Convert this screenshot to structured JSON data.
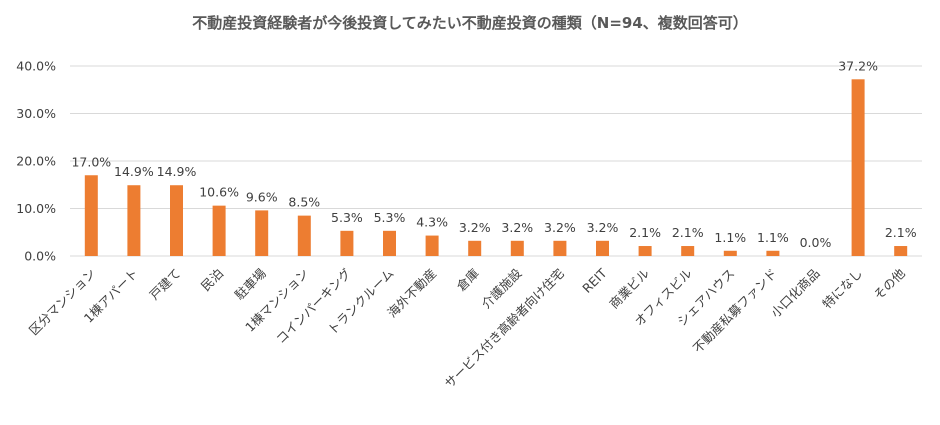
{
  "chart_data": {
    "type": "bar",
    "title": "不動産投資経験者が今後投資してみたい不動産投資の種類（N=94、複数回答可）",
    "categories": [
      "区分マンション",
      "1棟アパート",
      "戸建て",
      "民泊",
      "駐車場",
      "1棟マンション",
      "コインパーキング",
      "トランクルーム",
      "海外不動産",
      "倉庫",
      "介護施設",
      "サービス付き高齢者向け住宅",
      "REIT",
      "商業ビル",
      "オフィスビル",
      "シェアハウス",
      "不動産私募ファンド",
      "小口化商品",
      "特になし",
      "その他"
    ],
    "values": [
      17.0,
      14.9,
      14.9,
      10.6,
      9.6,
      8.5,
      5.3,
      5.3,
      4.3,
      3.2,
      3.2,
      3.2,
      3.2,
      2.1,
      2.1,
      1.1,
      1.1,
      0.0,
      37.2,
      2.1
    ],
    "value_labels": [
      "17.0%",
      "14.9%",
      "14.9%",
      "10.6%",
      "9.6%",
      "8.5%",
      "5.3%",
      "5.3%",
      "4.3%",
      "3.2%",
      "3.2%",
      "3.2%",
      "3.2%",
      "2.1%",
      "2.1%",
      "1.1%",
      "1.1%",
      "0.0%",
      "37.2%",
      "2.1%"
    ],
    "ylim": [
      0,
      40
    ],
    "y_ticks": [
      "0.0%",
      "10.0%",
      "20.0%",
      "30.0%",
      "40.0%"
    ],
    "grid": true,
    "bar_color": "#ED7D31",
    "grid_color": "#D9D9D9"
  }
}
